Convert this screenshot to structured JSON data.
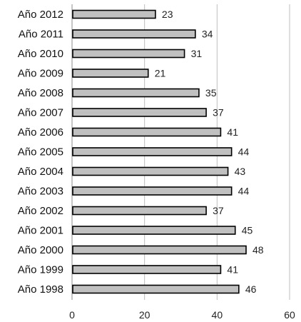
{
  "chart_data": {
    "type": "bar",
    "orientation": "horizontal",
    "categories": [
      "Año 2012",
      "Año 2011",
      "Año 2010",
      "Año 2009",
      "Año 2008",
      "Año 2007",
      "Año 2006",
      "Año 2005",
      "Año 2004",
      "Año 2003",
      "Año 2002",
      "Año 2001",
      "Año 2000",
      "Año 1999",
      "Año 1998"
    ],
    "values": [
      23,
      34,
      31,
      21,
      35,
      37,
      41,
      44,
      43,
      44,
      37,
      45,
      48,
      41,
      46
    ],
    "xlim": [
      0,
      60
    ],
    "xticks": [
      0,
      20,
      40,
      60
    ],
    "grid": true,
    "legend": "none",
    "colors": {
      "bar_fill": "#c0c0c0",
      "bar_stroke": "#000000",
      "grid": "#bdbdbd"
    }
  }
}
